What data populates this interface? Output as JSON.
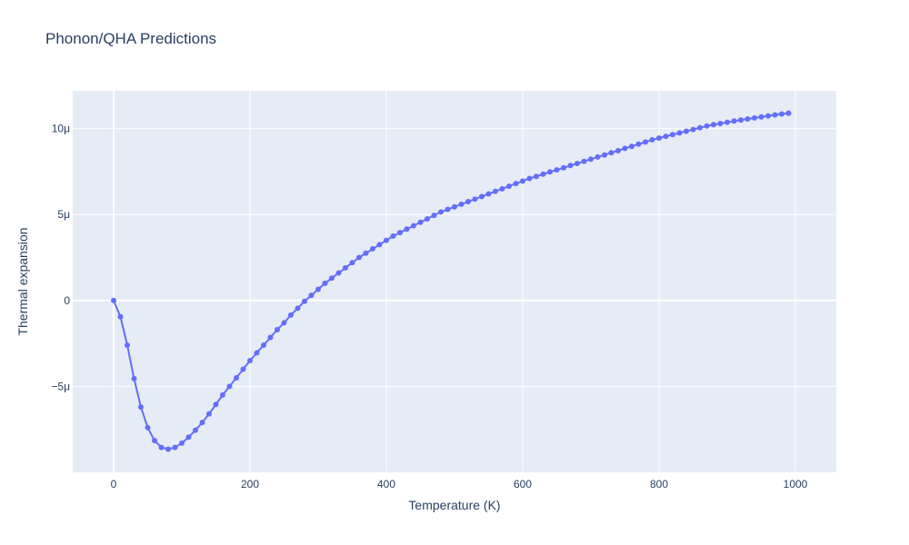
{
  "chart_data": {
    "type": "line",
    "title": "Phonon/QHA Predictions",
    "xlabel": "Temperature (K)",
    "ylabel": "Thermal expansion",
    "xlim": [
      -60,
      1060
    ],
    "ylim": [
      -1e-05,
      1.22e-05
    ],
    "x_ticks": [
      {
        "value": 0,
        "label": "0"
      },
      {
        "value": 200,
        "label": "200"
      },
      {
        "value": 400,
        "label": "400"
      },
      {
        "value": 600,
        "label": "600"
      },
      {
        "value": 800,
        "label": "800"
      },
      {
        "value": 1000,
        "label": "1000"
      }
    ],
    "y_ticks": [
      {
        "value": -5e-06,
        "label": "−5μ"
      },
      {
        "value": 0,
        "label": "0"
      },
      {
        "value": 5e-06,
        "label": "5μ"
      },
      {
        "value": 1e-05,
        "label": "10μ"
      }
    ],
    "grid": true,
    "colors": {
      "series": "#636efa",
      "plot_bg": "#e5ecf6",
      "grid": "#ffffff",
      "text": "#2a3f5f"
    },
    "series": [
      {
        "mode": "lines+markers",
        "x": [
          0,
          10,
          20,
          30,
          40,
          50,
          60,
          70,
          80,
          90,
          100,
          110,
          120,
          130,
          140,
          150,
          160,
          170,
          180,
          190,
          200,
          210,
          220,
          230,
          240,
          250,
          260,
          270,
          280,
          290,
          300,
          310,
          320,
          330,
          340,
          350,
          360,
          370,
          380,
          390,
          400,
          410,
          420,
          430,
          440,
          450,
          460,
          470,
          480,
          490,
          500,
          510,
          520,
          530,
          540,
          550,
          560,
          570,
          580,
          590,
          600,
          610,
          620,
          630,
          640,
          650,
          660,
          670,
          680,
          690,
          700,
          710,
          720,
          730,
          740,
          750,
          760,
          770,
          780,
          790,
          800,
          810,
          820,
          830,
          840,
          850,
          860,
          870,
          880,
          890,
          900,
          910,
          920,
          930,
          940,
          950,
          960,
          970,
          980,
          990
        ],
        "y": [
          0,
          -9.5e-07,
          -2.6e-06,
          -4.55e-06,
          -6.2e-06,
          -7.4e-06,
          -8.15e-06,
          -8.55e-06,
          -8.65e-06,
          -8.55e-06,
          -8.3e-06,
          -7.95e-06,
          -7.55e-06,
          -7.1e-06,
          -6.6e-06,
          -6.05e-06,
          -5.5e-06,
          -5e-06,
          -4.5e-06,
          -4e-06,
          -3.5e-06,
          -3.05e-06,
          -2.6e-06,
          -2.15e-06,
          -1.7e-06,
          -1.3e-06,
          -8.5e-07,
          -4.5e-07,
          -5e-08,
          3e-07,
          6.5e-07,
          1e-06,
          1.3e-06,
          1.6e-06,
          1.9e-06,
          2.2e-06,
          2.5e-06,
          2.75e-06,
          3e-06,
          3.25e-06,
          3.5e-06,
          3.75e-06,
          3.95e-06,
          4.15e-06,
          4.35e-06,
          4.55e-06,
          4.75e-06,
          4.95e-06,
          5.15e-06,
          5.3e-06,
          5.45e-06,
          5.6e-06,
          5.75e-06,
          5.9e-06,
          6.05e-06,
          6.2e-06,
          6.35e-06,
          6.5e-06,
          6.65e-06,
          6.8e-06,
          6.95e-06,
          7.1e-06,
          7.22e-06,
          7.35e-06,
          7.48e-06,
          7.6e-06,
          7.72e-06,
          7.85e-06,
          7.97e-06,
          8.1e-06,
          8.22e-06,
          8.35e-06,
          8.47e-06,
          8.6e-06,
          8.72e-06,
          8.85e-06,
          8.97e-06,
          9.1e-06,
          9.22e-06,
          9.35e-06,
          9.45e-06,
          9.55e-06,
          9.65e-06,
          9.75e-06,
          9.85e-06,
          9.95e-06,
          1.005e-05,
          1.015e-05,
          1.023e-05,
          1.03e-05,
          1.037e-05,
          1.044e-05,
          1.05e-05,
          1.056e-05,
          1.062e-05,
          1.068e-05,
          1.074e-05,
          1.08e-05,
          1.085e-05,
          1.09e-05
        ]
      }
    ]
  }
}
